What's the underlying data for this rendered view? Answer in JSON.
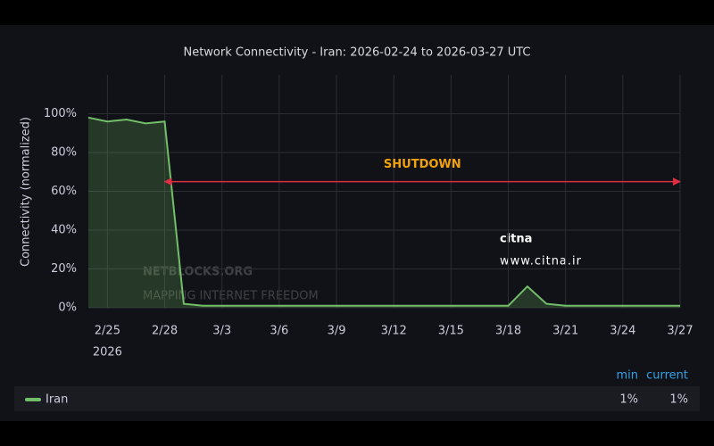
{
  "chart_data": {
    "type": "line",
    "title": "Network Connectivity - Iran: 2026-02-24 to 2026-03-27 UTC",
    "y_label": "Connectivity (normalized)",
    "x": [
      "2026-02-24",
      "2026-02-25",
      "2026-02-26",
      "2026-02-27",
      "2026-02-28",
      "2026-03-01",
      "2026-03-02",
      "2026-03-03",
      "2026-03-04",
      "2026-03-05",
      "2026-03-06",
      "2026-03-07",
      "2026-03-08",
      "2026-03-09",
      "2026-03-10",
      "2026-03-11",
      "2026-03-12",
      "2026-03-13",
      "2026-03-14",
      "2026-03-15",
      "2026-03-16",
      "2026-03-17",
      "2026-03-18",
      "2026-03-19",
      "2026-03-20",
      "2026-03-21",
      "2026-03-22",
      "2026-03-23",
      "2026-03-24",
      "2026-03-25",
      "2026-03-26",
      "2026-03-27"
    ],
    "series": [
      {
        "name": "Iran",
        "color": "#73bf69",
        "values": [
          98,
          96,
          97,
          95,
          96,
          2,
          1,
          1,
          1,
          1,
          1,
          1,
          1,
          1,
          1,
          1,
          1,
          1,
          1,
          1,
          1,
          1,
          1,
          11,
          2,
          1,
          1,
          1,
          1,
          1,
          1,
          1
        ]
      }
    ],
    "xlim": [
      "2026-02-24",
      "2026-03-27"
    ],
    "xticks": [
      {
        "value": "2026-02-25",
        "label": "2/25"
      },
      {
        "value": "2026-02-28",
        "label": "2/28"
      },
      {
        "value": "2026-03-03",
        "label": "3/3"
      },
      {
        "value": "2026-03-06",
        "label": "3/6"
      },
      {
        "value": "2026-03-09",
        "label": "3/9"
      },
      {
        "value": "2026-03-12",
        "label": "3/12"
      },
      {
        "value": "2026-03-15",
        "label": "3/15"
      },
      {
        "value": "2026-03-18",
        "label": "3/18"
      },
      {
        "value": "2026-03-21",
        "label": "3/21"
      },
      {
        "value": "2026-03-24",
        "label": "3/24"
      },
      {
        "value": "2026-03-27",
        "label": "3/27"
      }
    ],
    "x_year_label": "2026",
    "ylim": [
      0,
      120
    ],
    "yticks": [
      {
        "value": 0,
        "label": "0%"
      },
      {
        "value": 20,
        "label": "20%"
      },
      {
        "value": 40,
        "label": "40%"
      },
      {
        "value": 60,
        "label": "60%"
      },
      {
        "value": 80,
        "label": "80%"
      },
      {
        "value": 100,
        "label": "100%"
      }
    ],
    "grid": true,
    "annotations": [
      {
        "text": "SHUTDOWN",
        "x_start": "2026-02-28",
        "x_end": "2026-03-27",
        "y": 65,
        "color": "#e02f44",
        "text_color": "#f2a20c"
      }
    ],
    "legend_stats": {
      "headers": [
        "min",
        "current"
      ],
      "values": [
        {
          "value": 1,
          "label": "1%"
        },
        {
          "value": 1,
          "label": "1%"
        }
      ]
    },
    "watermarks": [
      "NETBLOCKS.ORG",
      "MAPPING INTERNET FREEDOM",
      "citna",
      "www.citna.ir"
    ]
  }
}
